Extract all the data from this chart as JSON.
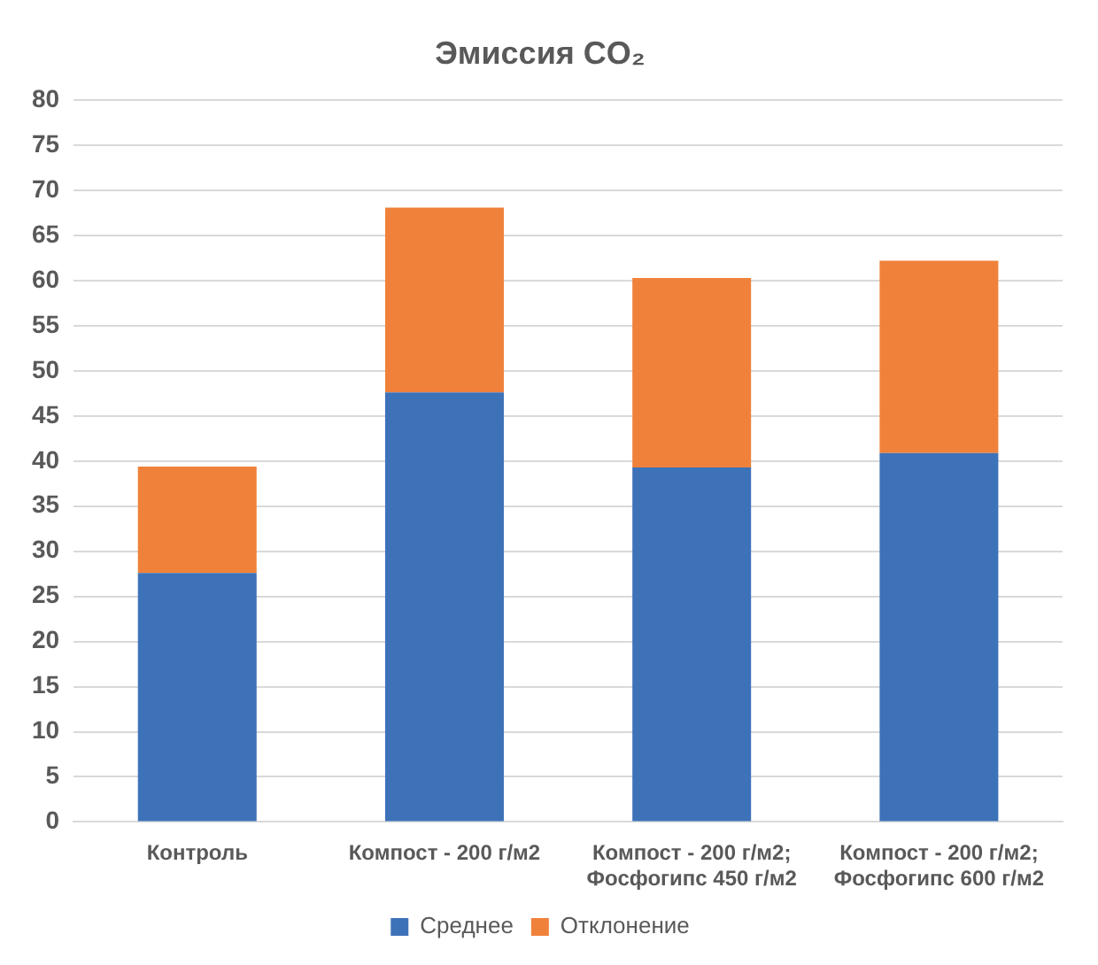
{
  "chart_data": {
    "type": "bar",
    "title": "Эмиссия CO₂",
    "stacked": true,
    "categories": [
      "Контроль",
      "Компост - 200 г/м2",
      "Компост - 200 г/м2; Фосфогипс 450 г/м2",
      "Компост - 200 г/м2; Фосфогипс 600 г/м2"
    ],
    "series": [
      {
        "name": "Среднее",
        "color": "#3d72b8",
        "values": [
          27.6,
          47.6,
          39.3,
          40.9
        ]
      },
      {
        "name": "Отклонение",
        "color": "#f0813b",
        "values": [
          11.8,
          20.5,
          21.0,
          21.3
        ]
      }
    ],
    "ylim": [
      0,
      80
    ],
    "yticks": [
      0,
      5,
      10,
      15,
      20,
      25,
      30,
      35,
      40,
      45,
      50,
      55,
      60,
      65,
      70,
      75,
      80
    ],
    "grid": "y",
    "legend": "bottom"
  }
}
